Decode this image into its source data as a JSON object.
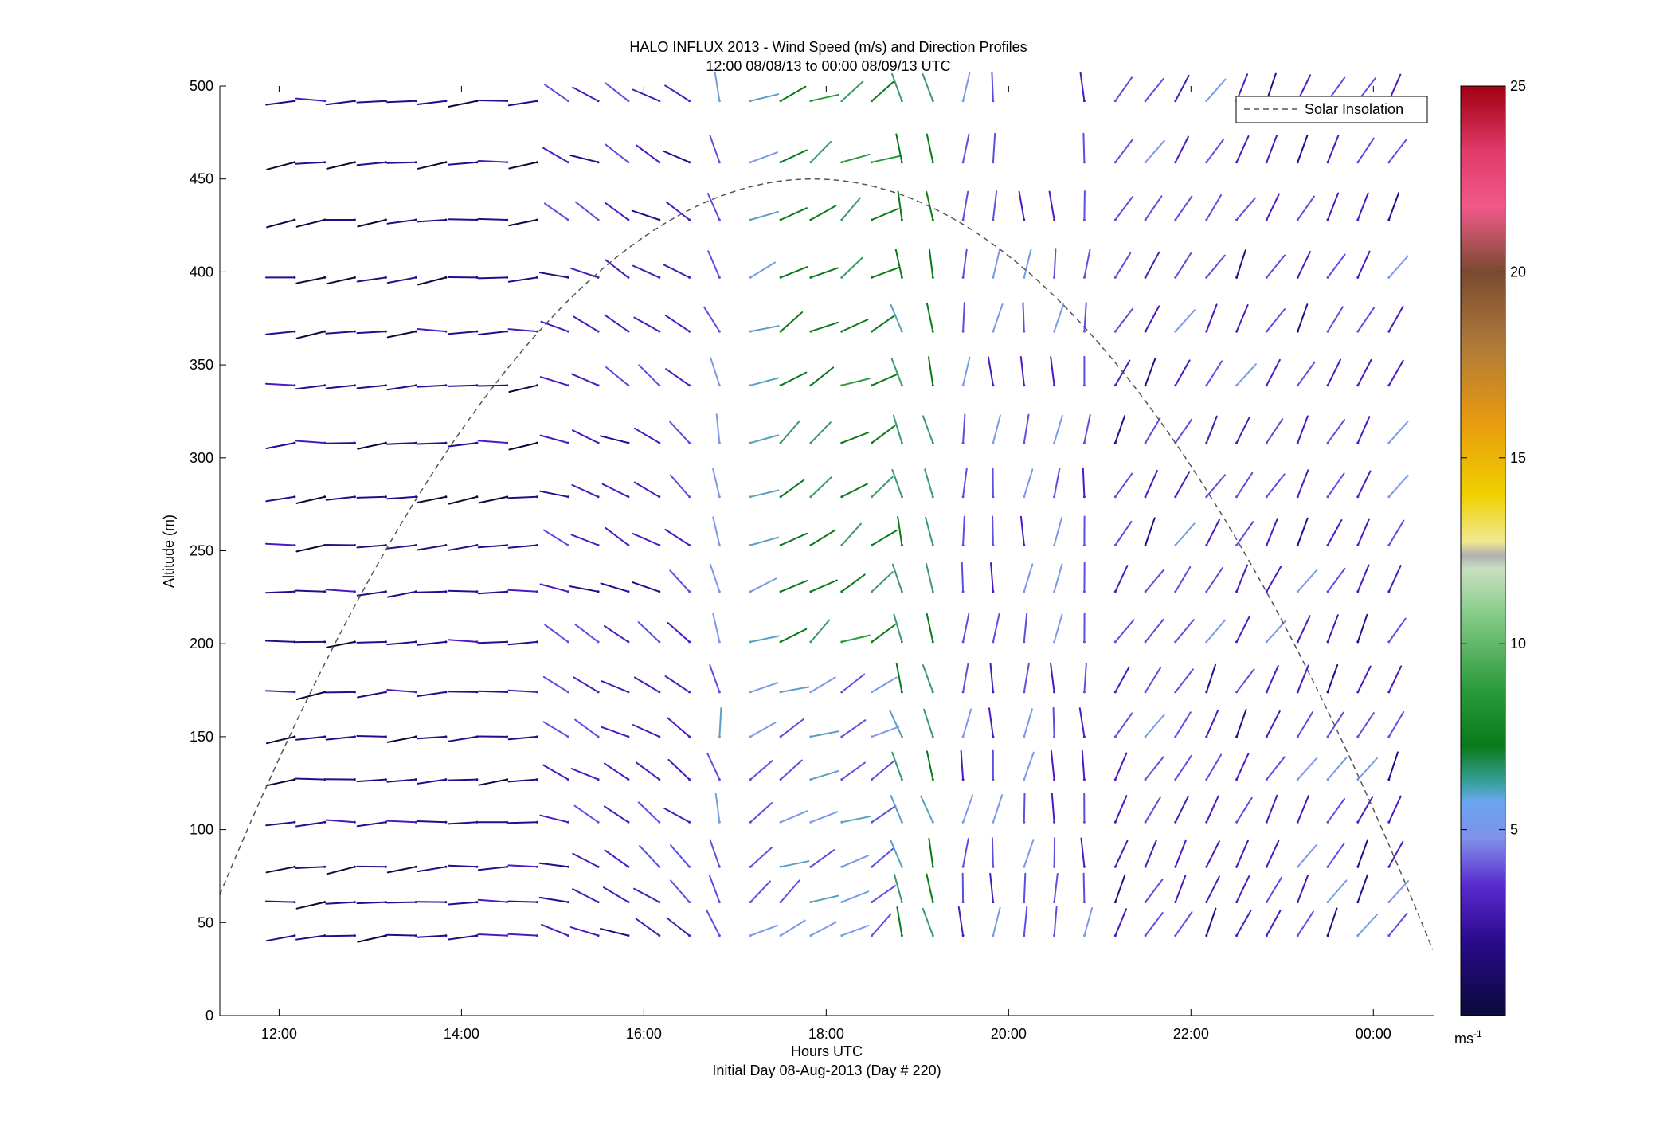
{
  "chart_data": {
    "type": "quiver",
    "title": "HALO INFLUX 2013 - Wind Speed (m/s) and Direction Profiles",
    "subtitle": "12:00 08/08/13 to 00:00 08/09/13  UTC",
    "xlabel": "Hours UTC",
    "xlabel2": "Initial Day 08-Aug-2013 (Day # 220)",
    "ylabel": "Altitude (m)",
    "xlim_hours": [
      11.35,
      24.67
    ],
    "ylim": [
      0,
      500
    ],
    "x_ticks": [
      {
        "hour": 12,
        "label": "12:00"
      },
      {
        "hour": 14,
        "label": "14:00"
      },
      {
        "hour": 16,
        "label": "16:00"
      },
      {
        "hour": 18,
        "label": "18:00"
      },
      {
        "hour": 20,
        "label": "20:00"
      },
      {
        "hour": 22,
        "label": "22:00"
      },
      {
        "hour": 24,
        "label": "00:00"
      }
    ],
    "y_ticks": [
      "0",
      "50",
      "100",
      "150",
      "200",
      "250",
      "300",
      "350",
      "400",
      "450",
      "500"
    ],
    "legend": {
      "label": "Solar Insolation",
      "style": "dashed",
      "color": "#555555",
      "position": "top-right"
    },
    "colorbar": {
      "min": 0,
      "max": 25,
      "ticks": [
        "5",
        "10",
        "15",
        "20",
        "25"
      ],
      "unit_label": "ms",
      "unit_exponent": "-1",
      "colormap": "speed palette: navy, indigo, purple, periwinkle, teal, green, light green, yellow, orange, brown, pink, crimson"
    },
    "solar_insolation": {
      "peak_hour": 17.85,
      "peak_altitude": 450,
      "zero_hour_morning": 11.35,
      "zero_altitude_at_start": 65,
      "end_hour": 24.67,
      "end_altitude": 33
    },
    "time_hours": [
      12.17,
      12.5,
      12.83,
      13.17,
      13.5,
      13.83,
      14.17,
      14.5,
      14.83,
      15.17,
      15.5,
      15.83,
      16.17,
      16.5,
      16.83,
      17.17,
      17.5,
      17.83,
      18.17,
      18.5,
      18.83,
      19.17,
      19.5,
      19.83,
      20.17,
      20.5,
      20.83,
      21.17,
      21.5,
      21.83,
      22.17,
      22.5,
      22.83,
      23.17,
      23.5,
      23.83,
      24.17
    ],
    "altitudes_m": [
      43,
      61,
      80,
      104,
      127,
      150,
      174,
      201,
      228,
      253,
      279,
      308,
      339,
      368,
      397,
      428,
      459,
      492
    ],
    "wind_field": {
      "description": "Wind vectors at each time/altitude; speed in m/s. Early afternoon weak westerly flow (~1-3 m/s, dark purple), mid-period 16:00-18:30 light variable with greens (~7-9 m/s) near 17:30-18:30 aloft, 18:45-19:30 northerly greens, evening ~2-4 m/s southwesterly flow.",
      "regimes": [
        {
          "hours": [
            12.0,
            15.0
          ],
          "speed_range": [
            1,
            3
          ],
          "direction": "westerly"
        },
        {
          "hours": [
            15.0,
            16.8
          ],
          "speed_range": [
            2,
            4
          ],
          "direction": "northwesterly"
        },
        {
          "hours": [
            16.8,
            18.6
          ],
          "speed_range": [
            3,
            9
          ],
          "direction": "southwesterly/variable"
        },
        {
          "hours": [
            18.8,
            19.3
          ],
          "speed_range": [
            6,
            9
          ],
          "direction": "northerly"
        },
        {
          "hours": [
            19.3,
            24.2
          ],
          "speed_range": [
            2,
            5
          ],
          "direction": "southwesterly"
        }
      ]
    }
  }
}
